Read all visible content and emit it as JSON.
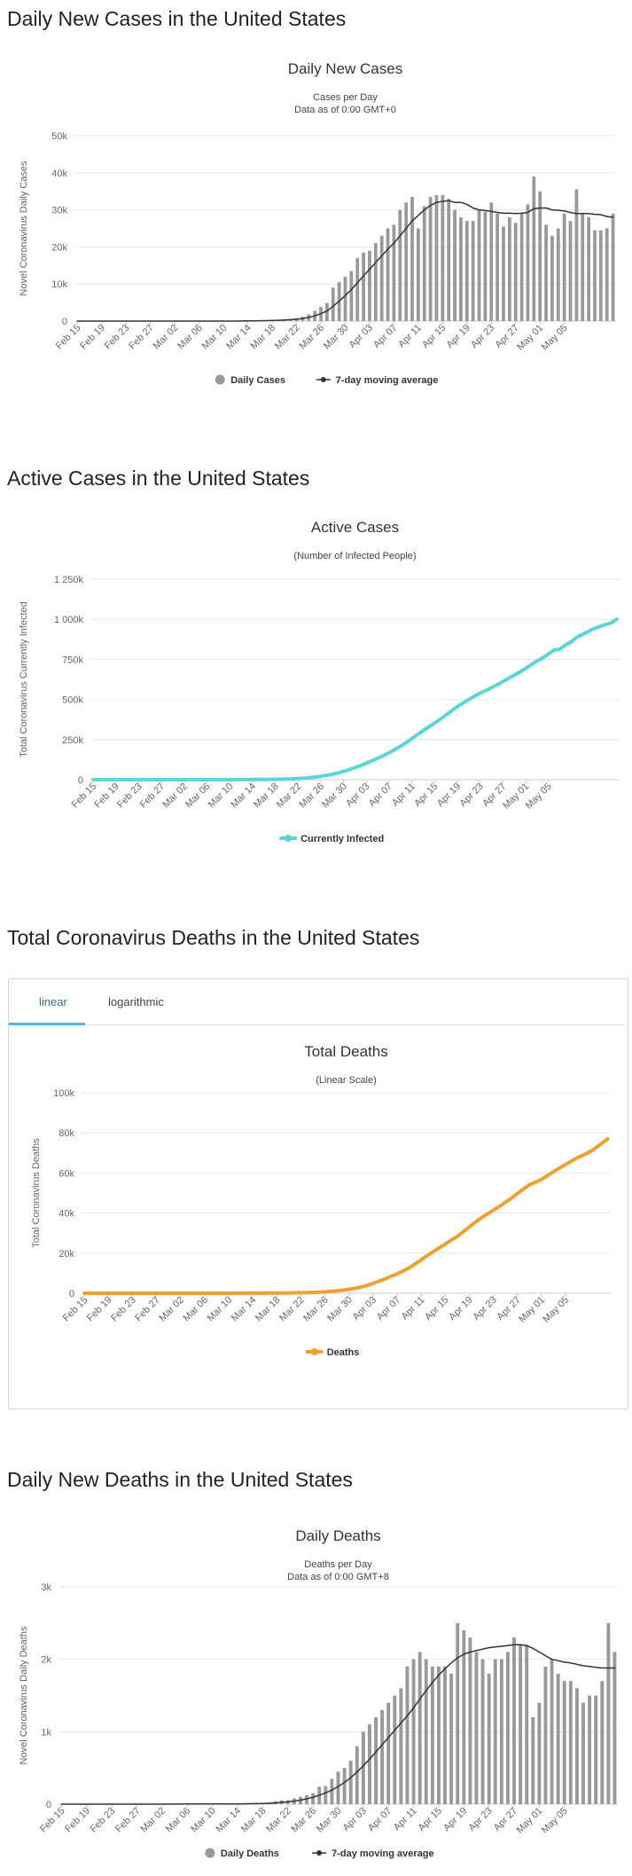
{
  "sections": [
    {
      "title": "Daily New Cases in the United States"
    },
    {
      "title": "Active Cases in the United States"
    },
    {
      "title": "Total Coronavirus Deaths in the United States"
    },
    {
      "title": "Daily New Deaths in the United States"
    }
  ],
  "tabs": {
    "linear": "linear",
    "logarithmic": "logarithmic",
    "active": "linear"
  },
  "colors": {
    "bar": "#999999",
    "avg": "#333333",
    "active": "#5ad6d6",
    "deaths": "#f0a030",
    "grid": "#e6e6e6",
    "text": "#333333",
    "axis": "#666666"
  },
  "chart_data": [
    {
      "id": "daily-cases",
      "type": "bar",
      "title": "Daily New Cases",
      "subtitle": [
        "Cases per Day",
        "Data as of 0:00 GMT+0"
      ],
      "ylabel": "Novel Coronavirus Daily Cases",
      "xlabel": "",
      "yticks": [
        "0",
        "10k",
        "20k",
        "30k",
        "40k",
        "50k"
      ],
      "ylim": [
        0,
        50000
      ],
      "xticks": [
        "Feb 15",
        "Feb 19",
        "Feb 23",
        "Feb 27",
        "Mar 02",
        "Mar 06",
        "Mar 10",
        "Mar 14",
        "Mar 18",
        "Mar 22",
        "Mar 26",
        "Mar 30",
        "Apr 03",
        "Apr 07",
        "Apr 11",
        "Apr 15",
        "Apr 19",
        "Apr 23",
        "Apr 27",
        "May 01",
        "May 05"
      ],
      "start": "Feb 15",
      "legend": [
        {
          "label": "Daily Cases",
          "kind": "dot",
          "color": "#999999"
        },
        {
          "label": "7-day moving average",
          "kind": "line",
          "color": "#333333"
        }
      ],
      "series": [
        {
          "name": "Daily Cases",
          "kind": "bars",
          "values": [
            0,
            0,
            0,
            0,
            0,
            0,
            0,
            0,
            0,
            0,
            0,
            0,
            0,
            0,
            0,
            0,
            0,
            0,
            0,
            0,
            0,
            0,
            0,
            0,
            0,
            0,
            0,
            50,
            80,
            100,
            150,
            200,
            250,
            300,
            400,
            600,
            800,
            1200,
            1800,
            2800,
            3800,
            4900,
            9000,
            10500,
            12000,
            13500,
            17000,
            18500,
            19000,
            21000,
            23000,
            25000,
            26000,
            30000,
            32000,
            33500,
            25000,
            31000,
            33500,
            34000,
            34000,
            33000,
            30000,
            28000,
            27000,
            27000,
            30000,
            29500,
            32000,
            29000,
            25500,
            28000,
            26500,
            29000,
            31500,
            39000,
            35000,
            26000,
            23000,
            25000,
            29000,
            27000,
            35500,
            29000,
            28000,
            24500,
            24500,
            25000,
            29000
          ]
        },
        {
          "name": "7-day moving average",
          "kind": "line",
          "values": [
            0,
            0,
            0,
            0,
            0,
            0,
            0,
            0,
            0,
            0,
            0,
            0,
            0,
            0,
            0,
            0,
            0,
            0,
            0,
            0,
            0,
            0,
            0,
            0,
            0,
            0,
            0,
            20,
            40,
            60,
            90,
            130,
            170,
            220,
            290,
            380,
            500,
            700,
            1000,
            1400,
            2000,
            2700,
            4000,
            5400,
            6900,
            8500,
            10300,
            12200,
            14000,
            15800,
            17600,
            19400,
            21000,
            23000,
            25000,
            27000,
            28500,
            30000,
            31200,
            32000,
            32300,
            32500,
            32000,
            32000,
            31500,
            30500,
            30000,
            29800,
            29600,
            29300,
            29100,
            29100,
            29000,
            29100,
            29300,
            30300,
            30500,
            30500,
            30000,
            29900,
            29700,
            29300,
            29000,
            29000,
            29000,
            28800,
            28700,
            28200,
            28000
          ]
        }
      ]
    },
    {
      "id": "active-cases",
      "type": "line",
      "title": "Active Cases",
      "subtitle": [
        "(Number of Infected People)"
      ],
      "ylabel": "Total Coronavirus Currently Infected",
      "xlabel": "",
      "yticks": [
        "0",
        "250k",
        "500k",
        "750k",
        "1 000k",
        "1 250k"
      ],
      "ylim": [
        0,
        1250000
      ],
      "xticks": [
        "Feb 15",
        "Feb 19",
        "Feb 23",
        "Feb 27",
        "Mar 02",
        "Mar 06",
        "Mar 10",
        "Mar 14",
        "Mar 18",
        "Mar 22",
        "Mar 26",
        "Mar 30",
        "Apr 03",
        "Apr 07",
        "Apr 11",
        "Apr 15",
        "Apr 19",
        "Apr 23",
        "Apr 27",
        "May 01",
        "May 05"
      ],
      "start": "Feb 15",
      "legend": [
        {
          "label": "Currently Infected",
          "kind": "thick",
          "color": "#5ad6d6"
        }
      ],
      "series": [
        {
          "name": "Currently Infected",
          "kind": "line",
          "values": [
            15,
            15,
            15,
            15,
            15,
            15,
            15,
            15,
            15,
            15,
            15,
            15,
            15,
            15,
            50,
            50,
            50,
            50,
            60,
            70,
            80,
            90,
            100,
            150,
            200,
            300,
            500,
            700,
            900,
            1200,
            1500,
            2000,
            2500,
            3000,
            4000,
            5000,
            7000,
            9000,
            12000,
            16000,
            21000,
            27000,
            34000,
            42000,
            52000,
            63000,
            75000,
            88000,
            103000,
            118000,
            134000,
            150000,
            168000,
            188000,
            208000,
            232000,
            256000,
            282000,
            306000,
            330000,
            353000,
            378000,
            404000,
            430000,
            456000,
            478000,
            500000,
            520000,
            540000,
            556000,
            574000,
            592000,
            612000,
            632000,
            652000,
            672000,
            694000,
            718000,
            740000,
            760000,
            784000,
            808000,
            814000,
            840000,
            860000,
            888000,
            906000,
            925000,
            942000,
            955000,
            966000,
            978000,
            1000000
          ]
        }
      ]
    },
    {
      "id": "total-deaths",
      "type": "line",
      "title": "Total Deaths",
      "subtitle": [
        "(Linear Scale)"
      ],
      "ylabel": "Total Coronavirus Deaths",
      "xlabel": "",
      "yticks": [
        "0",
        "20k",
        "40k",
        "60k",
        "80k",
        "100k"
      ],
      "ylim": [
        0,
        100000
      ],
      "xticks": [
        "Feb 15",
        "Feb 19",
        "Feb 23",
        "Feb 27",
        "Mar 02",
        "Mar 06",
        "Mar 10",
        "Mar 14",
        "Mar 18",
        "Mar 22",
        "Mar 26",
        "Mar 30",
        "Apr 03",
        "Apr 07",
        "Apr 11",
        "Apr 15",
        "Apr 19",
        "Apr 23",
        "Apr 27",
        "May 01",
        "May 05"
      ],
      "start": "Feb 15",
      "legend": [
        {
          "label": "Deaths",
          "kind": "thick",
          "color": "#f0a030"
        }
      ],
      "series": [
        {
          "name": "Deaths",
          "kind": "line",
          "values": [
            0,
            0,
            0,
            0,
            0,
            0,
            0,
            0,
            0,
            0,
            0,
            0,
            0,
            0,
            0,
            0,
            1,
            2,
            6,
            9,
            11,
            12,
            15,
            19,
            22,
            26,
            30,
            38,
            41,
            48,
            57,
            69,
            86,
            109,
            150,
            205,
            260,
            340,
            440,
            560,
            710,
            950,
            1200,
            1550,
            2000,
            2500,
            3100,
            3900,
            4900,
            6000,
            7200,
            8500,
            9700,
            11100,
            12700,
            14700,
            16700,
            18800,
            20800,
            22700,
            24600,
            26500,
            28300,
            30800,
            33200,
            35500,
            37600,
            39600,
            41400,
            43400,
            45400,
            47500,
            49800,
            52000,
            54200,
            55400,
            56800,
            58700,
            60700,
            62500,
            64200,
            66000,
            67600,
            69000,
            70500,
            72500,
            74800,
            77000
          ]
        }
      ]
    },
    {
      "id": "daily-deaths",
      "type": "bar",
      "title": "Daily Deaths",
      "subtitle": [
        "Deaths per Day",
        "Data as of 0:00 GMT+8"
      ],
      "ylabel": "Novel Coronavirus Daily Deaths",
      "xlabel": "",
      "yticks": [
        "0",
        "1k",
        "2k",
        "3k"
      ],
      "ylim": [
        0,
        3000
      ],
      "xticks": [
        "Feb 15",
        "Feb 19",
        "Feb 23",
        "Feb 27",
        "Mar 02",
        "Mar 06",
        "Mar 10",
        "Mar 14",
        "Mar 18",
        "Mar 22",
        "Mar 26",
        "Mar 30",
        "Apr 03",
        "Apr 07",
        "Apr 11",
        "Apr 15",
        "Apr 19",
        "Apr 23",
        "Apr 27",
        "May 01",
        "May 05"
      ],
      "start": "Feb 15",
      "legend": [
        {
          "label": "Daily Deaths",
          "kind": "dot",
          "color": "#999999"
        },
        {
          "label": "7-day moving average",
          "kind": "line",
          "color": "#333333"
        }
      ],
      "series": [
        {
          "name": "Daily Deaths",
          "kind": "bars",
          "values": [
            0,
            0,
            0,
            0,
            0,
            0,
            0,
            0,
            0,
            0,
            0,
            0,
            0,
            0,
            0,
            0,
            1,
            1,
            4,
            3,
            2,
            1,
            3,
            4,
            3,
            4,
            4,
            8,
            3,
            7,
            9,
            12,
            17,
            23,
            41,
            55,
            55,
            80,
            100,
            120,
            150,
            240,
            250,
            350,
            450,
            500,
            600,
            800,
            1000,
            1100,
            1200,
            1300,
            1400,
            1500,
            1600,
            1900,
            2000,
            2100,
            2000,
            1900,
            1900,
            1900,
            1800,
            2500,
            2400,
            2300,
            2100,
            2000,
            1800,
            2000,
            2000,
            2100,
            2300,
            2200,
            2200,
            1200,
            1400,
            1900,
            2000,
            1800,
            1700,
            1700,
            1600,
            1400,
            1500,
            1500,
            1700,
            2500,
            2100
          ]
        },
        {
          "name": "7-day moving average",
          "kind": "line",
          "values": [
            0,
            0,
            0,
            0,
            0,
            0,
            0,
            0,
            0,
            0,
            0,
            0,
            0,
            0,
            0,
            0,
            0,
            1,
            1,
            1,
            2,
            2,
            2,
            3,
            3,
            3,
            3,
            4,
            4,
            5,
            6,
            7,
            9,
            12,
            17,
            24,
            32,
            42,
            56,
            73,
            94,
            124,
            156,
            195,
            244,
            300,
            365,
            445,
            530,
            620,
            720,
            820,
            920,
            1020,
            1120,
            1220,
            1330,
            1450,
            1570,
            1680,
            1780,
            1870,
            1950,
            2020,
            2070,
            2100,
            2120,
            2140,
            2160,
            2170,
            2180,
            2190,
            2200,
            2200,
            2190,
            2150,
            2100,
            2050,
            2000,
            1980,
            1960,
            1950,
            1930,
            1910,
            1900,
            1890,
            1880,
            1880,
            1880
          ]
        }
      ]
    }
  ],
  "chart_data_overrides": {}
}
